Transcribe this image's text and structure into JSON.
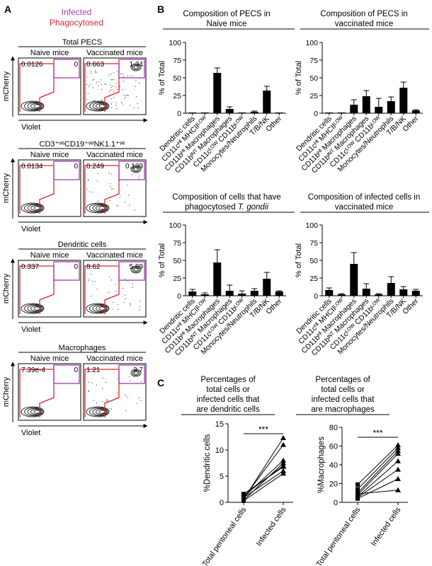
{
  "panels": {
    "A": "A",
    "B": "B",
    "C": "C"
  },
  "flow": {
    "legend_infected": "Infected",
    "legend_phagocytosed": "Phagocytosed",
    "color_infected": "#a23cb4",
    "color_phagocytosed": "#e0262c",
    "x_label": "Violet",
    "y_label": "mCherry",
    "groups": [
      {
        "title": "Total PECS",
        "naive_title": "Naive mice",
        "vacc_title": "Vaccinated mice",
        "naive_left": "0.0126",
        "naive_right": "0",
        "vacc_left": "0.663",
        "vacc_right": "1.34"
      },
      {
        "title": "CD3⁺ᵛᵉCD19⁺ᵛᵉNK1.1⁺ᵛᵉ",
        "naive_title": "Naive mice",
        "vacc_title": "Vaccinated mice",
        "naive_left": "0.0134",
        "naive_right": "0",
        "vacc_left": "0.249",
        "vacc_right": "0.139"
      },
      {
        "title": "Dendritic cells",
        "naive_title": "Naive mice",
        "vacc_title": "Vaccinated mice",
        "naive_left": "0.337",
        "naive_right": "0",
        "vacc_left": "8.62",
        "vacc_right": "5.89"
      },
      {
        "title": "Macrophages",
        "naive_title": "Naive mice",
        "vacc_title": "Vaccinated mice",
        "naive_left": "7.39e-4",
        "naive_right": "0",
        "vacc_left": "1.21",
        "vacc_right": "3.7"
      }
    ]
  },
  "chart_data": [
    {
      "type": "bar",
      "title": "Composition of PECS in Naive mice",
      "title_lines": [
        "Composition of PECS in",
        "Naive mice"
      ],
      "ylabel": "% of Total",
      "ylim": [
        0,
        100
      ],
      "yticks": [
        0,
        25,
        50,
        75,
        100
      ],
      "categories": [
        "Dendritic cells",
        "CD11cᴴᴵ MHCIIᴸᴼᵂ",
        "CD11bᴴᴵ Macrophages",
        "CD11bᴵᴺᵀ Macrophages",
        "CD11cᴸᴼᵂ CD11bᴸᴼᵂ",
        "Monocytes/Neutrophils",
        "T/B/NK",
        "Other"
      ],
      "values": [
        1,
        1,
        57,
        6,
        1,
        2,
        32,
        1
      ],
      "errors": [
        0,
        0,
        7,
        3,
        0,
        1,
        6,
        0
      ]
    },
    {
      "type": "bar",
      "title": "Composition of PECS in vaccinated mice",
      "title_lines": [
        "Composition of PECS in",
        "vaccinated mice"
      ],
      "ylabel": "% of Total",
      "ylim": [
        0,
        100
      ],
      "yticks": [
        0,
        25,
        50,
        75,
        100
      ],
      "categories": [
        "Dendritic cells",
        "CD11cᴴᴵ MHCIIᴸᴼᵂ",
        "CD11bᴴᴵ Macrophages",
        "CD11bᴵᴺᵀ Macrophages",
        "CD11cᴸᴼᵂ CD11bᴸᴼᵂ",
        "Monocytes/Neutrophils",
        "T/B/NK",
        "Other"
      ],
      "values": [
        1,
        1,
        12,
        24,
        9,
        17,
        36,
        4
      ],
      "errors": [
        0,
        0,
        7,
        8,
        12,
        6,
        8,
        1
      ]
    },
    {
      "type": "bar",
      "title": "Composition of cells that have phagocytosed T. gondii",
      "title_lines": [
        "Composition of cells that have",
        "phagocytosed T. gondii"
      ],
      "ylabel": "% of Total",
      "ylim": [
        0,
        100
      ],
      "yticks": [
        0,
        25,
        50,
        75,
        100
      ],
      "categories": [
        "Dendritic cells",
        "CD11cᴴᴵ MHCIIᴸᴼᵂ",
        "CD11bᴴᴵ Macrophages",
        "CD11bᴵᴺᵀ Macrophages",
        "CD11cᴸᴼᵂ CD11bᴸᴼᵂ",
        "Monocytes/Neutrophils",
        "T/B/NK",
        "Other"
      ],
      "values": [
        6,
        2,
        47,
        7,
        3,
        7,
        24,
        6
      ],
      "errors": [
        3,
        2,
        18,
        8,
        4,
        3,
        9,
        1
      ]
    },
    {
      "type": "bar",
      "title": "Composition of infected cells in vaccinated mice",
      "title_lines": [
        "Composition of infected cells in",
        "vaccinated mice"
      ],
      "ylabel": "% of Total",
      "ylim": [
        0,
        100
      ],
      "yticks": [
        0,
        25,
        50,
        75,
        100
      ],
      "categories": [
        "Dendritic cells",
        "CD11cᴴᴵ MHCIIᴸᴼᵂ",
        "CD11bᴴᴵ Macrophages",
        "CD11bᴵᴺᵀ Macrophages",
        "CD11cᴸᴼᵂ CD11bᴸᴼᵂ",
        "Monocytes/Neutrophils",
        "T/B/NK",
        "Other"
      ],
      "values": [
        8,
        2,
        45,
        10,
        2,
        18,
        9,
        7
      ],
      "errors": [
        3,
        1,
        16,
        7,
        1,
        9,
        4,
        2
      ]
    },
    {
      "type": "line",
      "title": "Percentages of total cells or infected cells that are dendritic cells",
      "title_lines": [
        "Percentages of",
        "total cells or",
        "infected cells that",
        "are dendritic cells"
      ],
      "ylabel": "%Dendritic cells",
      "ylim": [
        0,
        15
      ],
      "yticks": [
        0,
        5,
        10,
        15
      ],
      "categories": [
        "Total peritoneal cells",
        "Infected cells"
      ],
      "significance": "***",
      "series": [
        {
          "marker": "square",
          "values": [
            0.6,
            12.3
          ]
        },
        {
          "marker": "square",
          "values": [
            0.8,
            11.0
          ]
        },
        {
          "marker": "square",
          "values": [
            1.0,
            8.0
          ]
        },
        {
          "marker": "square",
          "values": [
            0.4,
            7.5
          ]
        },
        {
          "marker": "square",
          "values": [
            1.3,
            7.0
          ]
        },
        {
          "marker": "square",
          "values": [
            1.6,
            6.8
          ]
        },
        {
          "marker": "square",
          "values": [
            0.9,
            6.0
          ]
        },
        {
          "marker": "square",
          "values": [
            0.3,
            5.5
          ]
        }
      ]
    },
    {
      "type": "line",
      "title": "Percentages of total cells or infected cells that are macrophages",
      "title_lines": [
        "Percentages of",
        "total cells or",
        "infected cells that",
        "are macrophages"
      ],
      "ylabel": "%Macrophages",
      "ylim": [
        0,
        80
      ],
      "yticks": [
        0,
        20,
        40,
        60,
        80
      ],
      "categories": [
        "Total peritoneal cells",
        "Infected cells"
      ],
      "significance": "***",
      "series": [
        {
          "marker": "square",
          "values": [
            19,
            61
          ]
        },
        {
          "marker": "square",
          "values": [
            14,
            58
          ]
        },
        {
          "marker": "square",
          "values": [
            10,
            55
          ]
        },
        {
          "marker": "square",
          "values": [
            8,
            52
          ]
        },
        {
          "marker": "square",
          "values": [
            6,
            44
          ]
        },
        {
          "marker": "square",
          "values": [
            5,
            35
          ]
        },
        {
          "marker": "square",
          "values": [
            4,
            25
          ]
        },
        {
          "marker": "square",
          "values": [
            9,
            13
          ]
        }
      ]
    }
  ]
}
